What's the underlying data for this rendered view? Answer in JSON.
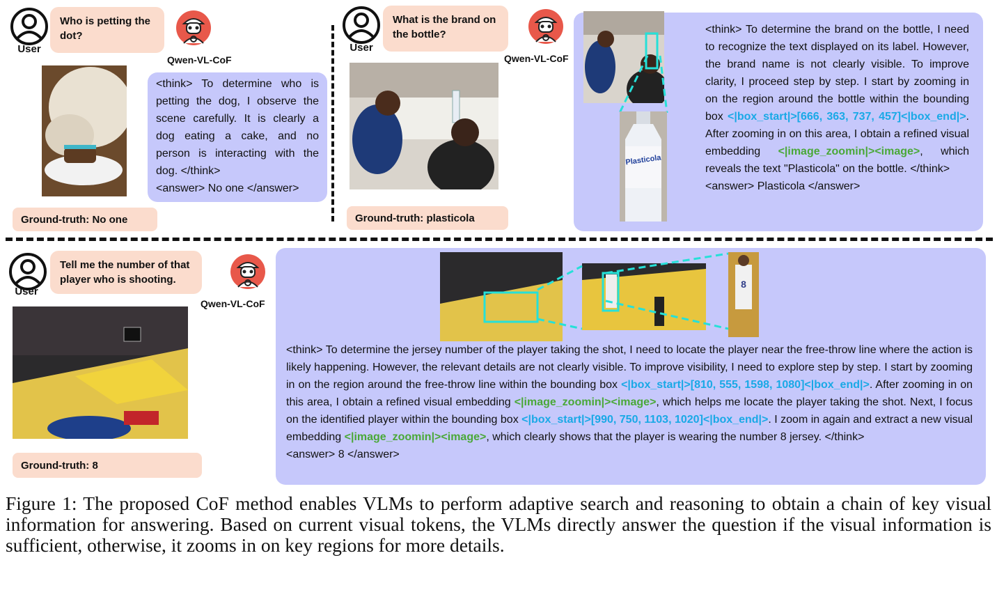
{
  "speaker": {
    "user": "User",
    "model": "Qwen-VL-CoF"
  },
  "example1": {
    "question": "Who is petting the dot?",
    "think": "<think> To determine who is petting the dog, I observe the scene carefully. It is clearly a dog eating a cake, and no person is interacting with the dog. </think>",
    "answer": "<answer> No one </answer>",
    "ground_truth": "Ground-truth: No one"
  },
  "example2": {
    "question": "What is the brand on the bottle?",
    "think_a": "<think> To determine the brand on the bottle, I need to recognize the text displayed on its label. However, the brand name is not clearly visible. To improve clarity, I proceed step by step. I start by zooming in on the region around the bottle within the bounding box ",
    "box": "<|box_start|>[666, 363, 737, 457]<|box_end|>",
    "think_b": ". After zooming in on this area, I obtain a refined visual embedding ",
    "zoom": "<|image_zoomin|><image>",
    "think_c": ", which reveals the text  \"Plasticola\" on the bottle. </think>",
    "answer": "<answer> Plasticola </answer>",
    "ground_truth": "Ground-truth: plasticola",
    "bottle_label": "Plasticola"
  },
  "example3": {
    "question": "Tell me the number of that player who is shooting.",
    "think_a": "<think> To determine the jersey number of the player taking the shot, I need to locate the player near the free-throw line where the action is likely happening. However, the relevant details are not clearly visible. To improve visibility, I need to explore step by step. I start by zooming in on the region around the free-throw line within the bounding box ",
    "box1": "<|box_start|>[810, 555, 1598, 1080]<|box_end|>",
    "think_b": ". After zooming in on this area, I obtain a refined visual embedding ",
    "zoom1": "<|image_zoomin|><image>",
    "think_c": ", which helps me locate the player taking the shot. Next, I focus on the identified player within the bounding box ",
    "box2": "<|box_start|>[990, 750, 1103, 1020]<|box_end|>",
    "think_d": ". I zoom in again and extract a new visual embedding ",
    "zoom2": "<|image_zoomin|><image>",
    "think_e": ", which clearly shows that the player is wearing the number 8 jersey.  </think>",
    "answer": "<answer> 8 </answer>",
    "ground_truth": "Ground-truth: 8",
    "jersey": "8"
  },
  "caption": "Figure 1: The proposed CoF method enables VLMs to perform adaptive search and reasoning to obtain a chain of key visual information for answering. Based on current visual tokens, the VLMs directly answer the question if the visual information is sufficient, otherwise, it zooms in on key regions for more details.",
  "colors": {
    "question_bg": "#fbdccd",
    "answer_bg": "#c6c8fb",
    "box_token": "#19a9e6",
    "zoom_token": "#4aa838",
    "model_icon": "#e8584a"
  }
}
